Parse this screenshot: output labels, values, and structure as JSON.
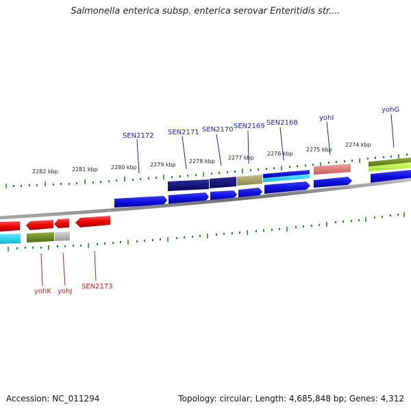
{
  "title": "Salmonella enterica subsp. enterica serovar Enteritidis str....",
  "footer": {
    "accession": "Accession: NC_011294",
    "summary": "Topology: circular; Length: 4,685,848 bp; Genes: 4,312"
  },
  "colors": {
    "plus_label": "#1a1acc",
    "minus_label": "#cc1a1a",
    "tick": "#1f8a1f",
    "backbone": "#888888"
  },
  "kbp_ticks": [
    "2282 kbp",
    "2281 kbp",
    "2280 kbp",
    "2279 kbp",
    "2278 kbp",
    "2277 kbp",
    "2276 kbp",
    "2275 kbp",
    "2274 kbp"
  ],
  "plus_genes": [
    "SEN2172",
    "SEN2171",
    "SEN2170",
    "SEN2169",
    "SEN2168",
    "yohI",
    "yohG"
  ],
  "minus_genes": [
    "yohK",
    "yohJ",
    "SEN2173"
  ]
}
